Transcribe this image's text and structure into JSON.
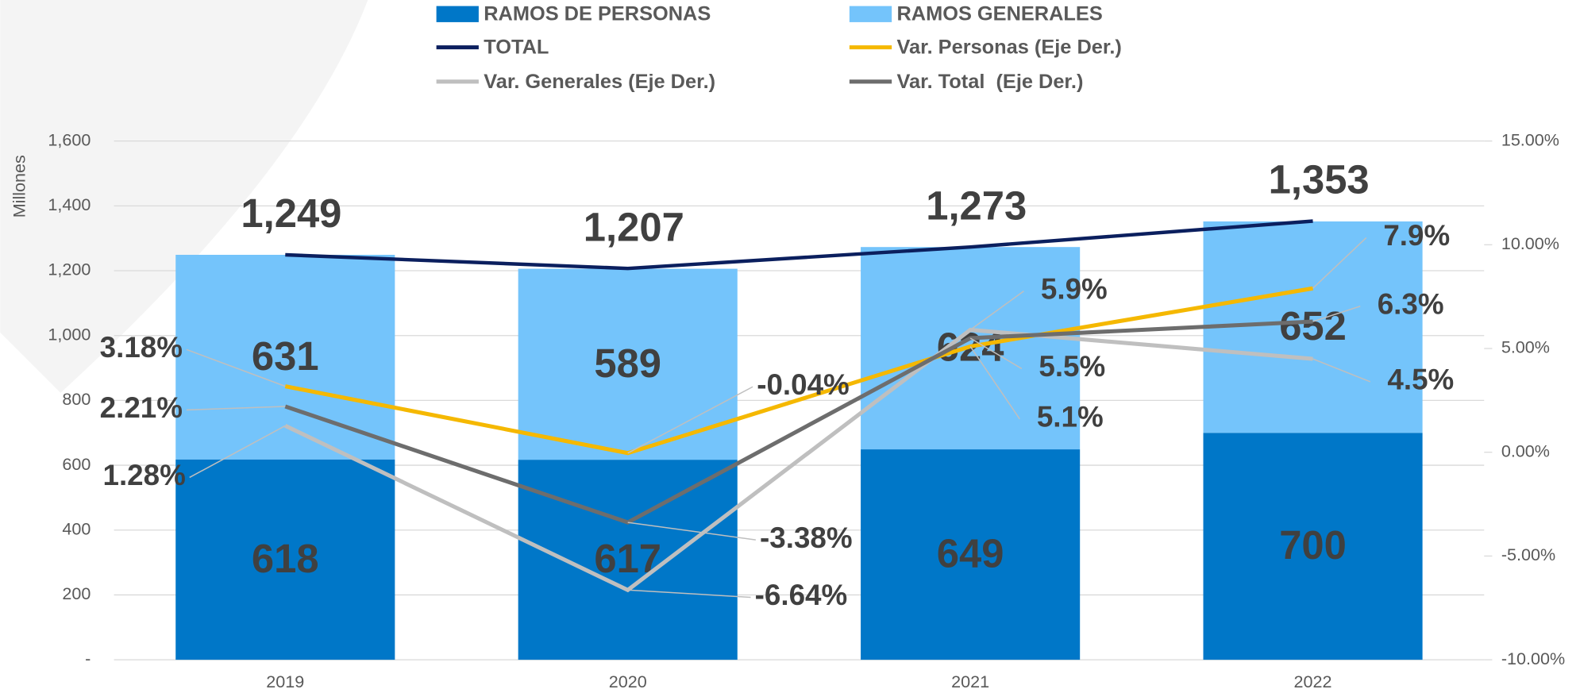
{
  "chart_data": {
    "type": "bar",
    "stacked": true,
    "y_label": "Millones",
    "categories": [
      "2019",
      "2020",
      "2021",
      "2022"
    ],
    "ylim": [
      0,
      1600
    ],
    "yticks": [
      {
        "value": 0,
        "label": "-"
      },
      200,
      400,
      600,
      800,
      {
        "value": 1000,
        "label": "1,000"
      },
      {
        "value": 1200,
        "label": "1,200"
      },
      {
        "value": 1400,
        "label": "1,400"
      },
      {
        "value": 1600,
        "label": "1,600"
      }
    ],
    "y2lim": [
      -10,
      15
    ],
    "y2ticks": [
      {
        "value": -10,
        "label": "-10.00%"
      },
      {
        "value": -5,
        "label": "-5.00%"
      },
      {
        "value": 0,
        "label": "0.00%"
      },
      {
        "value": 5,
        "label": "5.00%"
      },
      {
        "value": 10,
        "label": "10.00%"
      },
      {
        "value": 15,
        "label": "15.00%"
      }
    ],
    "grid": true,
    "series": [
      {
        "name": "RAMOS DE PERSONAS",
        "type": "bar",
        "color": "#0077c8",
        "values": [
          618,
          617,
          649,
          700
        ]
      },
      {
        "name": "RAMOS GENERALES",
        "type": "bar",
        "color": "#74c4fb",
        "values": [
          631,
          589,
          624,
          652
        ]
      },
      {
        "name": "TOTAL",
        "type": "line",
        "color": "#0b1f5e",
        "values": [
          1249,
          1207,
          1273,
          1353
        ],
        "value_labels": [
          "1,249",
          "1,207",
          "1,273",
          "1,353"
        ]
      },
      {
        "name": "Var. Personas (Eje Der.)",
        "type": "line",
        "axis": "y2",
        "color": "#f5b800",
        "values": [
          3.18,
          -0.04,
          5.1,
          7.9
        ],
        "value_labels": [
          "3.18%",
          "-0.04%",
          "5.1%",
          "7.9%"
        ]
      },
      {
        "name": "Var. Generales (Eje Der.)",
        "type": "line",
        "axis": "y2",
        "color": "#bfbfbf",
        "values": [
          1.28,
          -6.64,
          5.9,
          4.5
        ],
        "value_labels": [
          "1.28%",
          "-6.64%",
          "5.9%",
          "4.5%"
        ]
      },
      {
        "name": "Var. Total  (Eje Der.)",
        "type": "line",
        "axis": "y2",
        "color": "#6d6d6d",
        "values": [
          2.21,
          -3.38,
          5.5,
          6.3
        ],
        "value_labels": [
          "2.21%",
          "-3.38%",
          "5.5%",
          "6.3%"
        ]
      }
    ]
  }
}
